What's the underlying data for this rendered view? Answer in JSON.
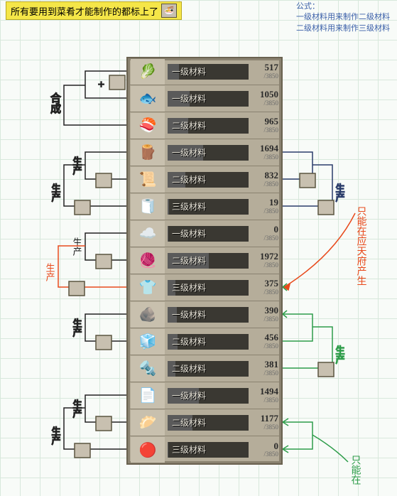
{
  "header_note": "所有要用到菜肴才能制作的都标上了",
  "formula": {
    "title": "公式：",
    "line1": "一级材料用来制作二级材料",
    "line2": "二级材料用来制作三级材料"
  },
  "max_count": "/3850",
  "rows": [
    {
      "glyph": "🥬",
      "level": "一级材料",
      "fill": 14,
      "cur": "517"
    },
    {
      "glyph": "🐟",
      "level": "一级材料",
      "fill": 27,
      "cur": "1050"
    },
    {
      "glyph": "🍣",
      "level": "二级材料",
      "fill": 25,
      "cur": "965"
    },
    {
      "glyph": "🪵",
      "level": "一级材料",
      "fill": 44,
      "cur": "1694"
    },
    {
      "glyph": "📜",
      "level": "二级材料",
      "fill": 22,
      "cur": "832"
    },
    {
      "glyph": "🧻",
      "level": "三级材料",
      "fill": 2,
      "cur": "19"
    },
    {
      "glyph": "☁️",
      "level": "一级材料",
      "fill": 1,
      "cur": "0"
    },
    {
      "glyph": "🧶",
      "level": "二级材料",
      "fill": 51,
      "cur": "1972"
    },
    {
      "glyph": "👕",
      "level": "三级材料",
      "fill": 10,
      "cur": "375"
    },
    {
      "glyph": "🪨",
      "level": "一级材料",
      "fill": 11,
      "cur": "390"
    },
    {
      "glyph": "🧊",
      "level": "二级材料",
      "fill": 12,
      "cur": "456"
    },
    {
      "glyph": "🔩",
      "level": "二级材料",
      "fill": 10,
      "cur": "381"
    },
    {
      "glyph": "📄",
      "level": "一级材料",
      "fill": 39,
      "cur": "1494"
    },
    {
      "glyph": "🥟",
      "level": "二级材料",
      "fill": 31,
      "cur": "1177"
    },
    {
      "glyph": "🔴",
      "level": "三级材料",
      "fill": 1,
      "cur": "0"
    }
  ],
  "annot": {
    "hecheng": "合成",
    "shengchan": "生产",
    "right_note1": "只能在应天府产生",
    "right_note2": "只能在"
  },
  "colors": {
    "red": "#e84a1c",
    "green": "#2e9d4a",
    "navy": "#2a3c6a",
    "black": "#222222"
  }
}
